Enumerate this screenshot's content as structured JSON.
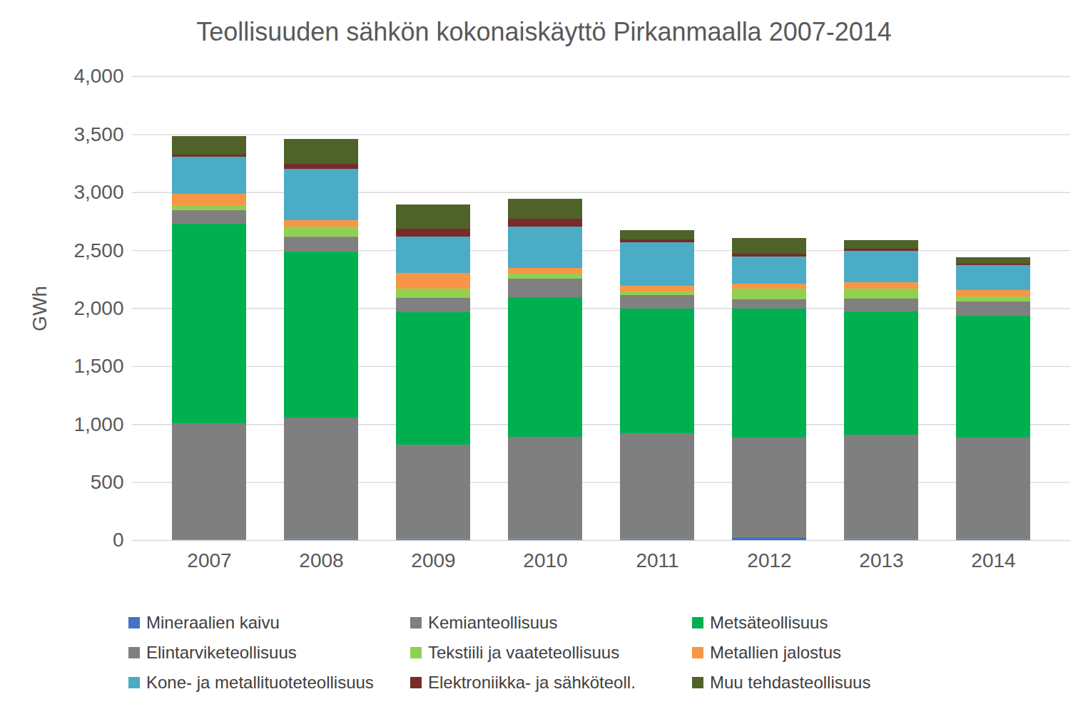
{
  "chart_data": {
    "type": "bar",
    "stacked": true,
    "title": "Teollisuuden sähkön kokonaiskäyttö Pirkanmaalla 2007-2014",
    "y_label": "GWh",
    "categories": [
      "2007",
      "2008",
      "2009",
      "2010",
      "2011",
      "2012",
      "2013",
      "2014"
    ],
    "ylim": [
      0,
      4000
    ],
    "yticks": [
      0,
      500,
      1000,
      1500,
      2000,
      2500,
      3000,
      3500,
      4000
    ],
    "grid": true,
    "legend": "bottom",
    "series": [
      {
        "name": "Mineraalien kaivu",
        "color": "#4472c4",
        "values": [
          3,
          10,
          10,
          10,
          10,
          25,
          10,
          10
        ]
      },
      {
        "name": "Kemianteollisuus",
        "color": "#7f7f7f",
        "values": [
          1005,
          1047,
          813,
          881,
          912,
          860,
          899,
          875
        ]
      },
      {
        "name": "Metsäteollisuus",
        "color": "#00b050",
        "values": [
          1720,
          1431,
          1143,
          1204,
          1075,
          1112,
          1063,
          1050
        ]
      },
      {
        "name": "Elintarviketeollisuus",
        "color": "#808080",
        "values": [
          117,
          129,
          123,
          160,
          117,
          80,
          111,
          123
        ]
      },
      {
        "name": "Tekstiili ja vaateteollisuus",
        "color": "#92d050",
        "values": [
          43,
          86,
          80,
          43,
          30,
          92,
          86,
          43
        ]
      },
      {
        "name": "Metallien jalostus",
        "color": "#f79646",
        "values": [
          98,
          56,
          135,
          49,
          49,
          43,
          55,
          56
        ]
      },
      {
        "name": "Kone- ja metallituoteteollisuus",
        "color": "#4bacc6",
        "values": [
          320,
          442,
          313,
          356,
          375,
          233,
          270,
          215
        ]
      },
      {
        "name": "Elektroniikka- ja sähköteoll.",
        "color": "#772c2a",
        "values": [
          18,
          43,
          68,
          68,
          25,
          25,
          19,
          12
        ]
      },
      {
        "name": "Muu tehdasteollisuus",
        "color": "#4f6228",
        "values": [
          160,
          215,
          209,
          172,
          80,
          135,
          74,
          55
        ]
      }
    ]
  }
}
